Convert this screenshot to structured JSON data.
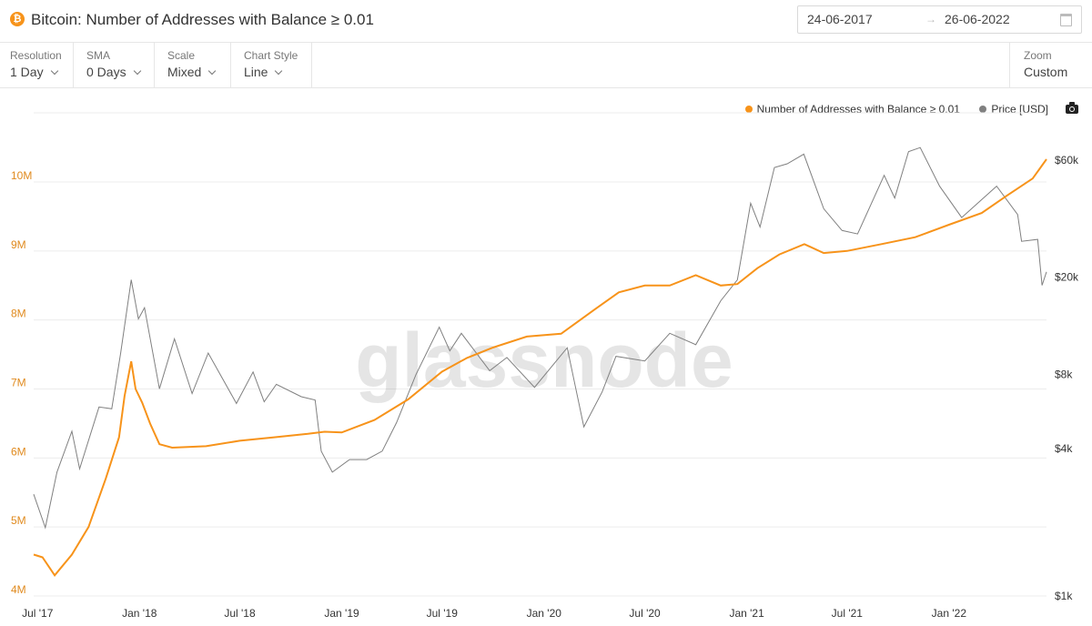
{
  "header": {
    "title": "Bitcoin: Number of Addresses with Balance ≥ 0.01",
    "coin_icon": "bitcoin-icon",
    "coin_glyph": "₿",
    "coin_color": "#f7931a",
    "date_from": "24-06-2017",
    "date_to": "26-06-2022",
    "calendar_icon": "calendar-icon"
  },
  "controls": [
    {
      "label": "Resolution",
      "value": "1 Day"
    },
    {
      "label": "SMA",
      "value": "0 Days"
    },
    {
      "label": "Scale",
      "value": "Mixed"
    },
    {
      "label": "Chart Style",
      "value": "Line"
    }
  ],
  "zoom": {
    "label": "Zoom",
    "value": "Custom"
  },
  "watermark": "glassnode",
  "camera_icon": "camera-icon",
  "chart_data": {
    "type": "line",
    "x_range": [
      "2017-06-24",
      "2022-06-26"
    ],
    "x_ticks": [
      "Jul '17",
      "Jan '18",
      "Jul '18",
      "Jan '19",
      "Jul '19",
      "Jan '20",
      "Jul '20",
      "Jan '21",
      "Jul '21",
      "Jan '22"
    ],
    "left_axis": {
      "ticks": [
        "4M",
        "5M",
        "6M",
        "7M",
        "8M",
        "9M",
        "10M"
      ],
      "range": [
        4000000,
        10000000
      ],
      "scale": "linear",
      "color": "#e08a1e"
    },
    "right_axis": {
      "ticks": [
        "$1k",
        "$4k",
        "$8k",
        "$20k",
        "$60k"
      ],
      "range_usd": [
        1000,
        60000
      ],
      "scale": "log"
    },
    "grid": true,
    "legend_position": "top-right",
    "series": [
      {
        "name": "Number of Addresses with Balance ≥ 0.01",
        "color": "#f7931a",
        "axis": "left",
        "points": [
          [
            "2017-06-24",
            4600000
          ],
          [
            "2017-07-10",
            4560000
          ],
          [
            "2017-08-01",
            4300000
          ],
          [
            "2017-09-01",
            4600000
          ],
          [
            "2017-10-01",
            5000000
          ],
          [
            "2017-11-01",
            5700000
          ],
          [
            "2017-11-25",
            6300000
          ],
          [
            "2017-12-05",
            6900000
          ],
          [
            "2017-12-17",
            7400000
          ],
          [
            "2017-12-25",
            7000000
          ],
          [
            "2018-01-06",
            6800000
          ],
          [
            "2018-01-20",
            6500000
          ],
          [
            "2018-02-06",
            6200000
          ],
          [
            "2018-03-01",
            6150000
          ],
          [
            "2018-05-01",
            6170000
          ],
          [
            "2018-07-01",
            6250000
          ],
          [
            "2018-09-01",
            6300000
          ],
          [
            "2018-11-01",
            6350000
          ],
          [
            "2018-12-01",
            6380000
          ],
          [
            "2019-01-01",
            6370000
          ],
          [
            "2019-03-01",
            6550000
          ],
          [
            "2019-05-01",
            6850000
          ],
          [
            "2019-07-01",
            7250000
          ],
          [
            "2019-08-15",
            7450000
          ],
          [
            "2019-10-01",
            7600000
          ],
          [
            "2019-12-01",
            7760000
          ],
          [
            "2020-02-01",
            7800000
          ],
          [
            "2020-04-01",
            8150000
          ],
          [
            "2020-05-15",
            8400000
          ],
          [
            "2020-07-01",
            8500000
          ],
          [
            "2020-08-15",
            8500000
          ],
          [
            "2020-10-01",
            8650000
          ],
          [
            "2020-11-15",
            8500000
          ],
          [
            "2020-12-15",
            8520000
          ],
          [
            "2021-01-20",
            8750000
          ],
          [
            "2021-03-01",
            8950000
          ],
          [
            "2021-04-15",
            9100000
          ],
          [
            "2021-05-20",
            8970000
          ],
          [
            "2021-07-01",
            9000000
          ],
          [
            "2021-09-01",
            9100000
          ],
          [
            "2021-11-01",
            9200000
          ],
          [
            "2022-01-01",
            9380000
          ],
          [
            "2022-03-01",
            9550000
          ],
          [
            "2022-04-15",
            9800000
          ],
          [
            "2022-06-01",
            10050000
          ],
          [
            "2022-06-26",
            10330000
          ]
        ]
      },
      {
        "name": "Price [USD]",
        "color": "#808080",
        "axis": "right",
        "points": [
          [
            "2017-06-24",
            2600
          ],
          [
            "2017-07-15",
            1900
          ],
          [
            "2017-08-05",
            3200
          ],
          [
            "2017-09-01",
            4700
          ],
          [
            "2017-09-15",
            3300
          ],
          [
            "2017-10-20",
            5900
          ],
          [
            "2017-11-12",
            5800
          ],
          [
            "2017-11-28",
            9800
          ],
          [
            "2017-12-17",
            19500
          ],
          [
            "2017-12-30",
            13500
          ],
          [
            "2018-01-10",
            15000
          ],
          [
            "2018-02-06",
            7000
          ],
          [
            "2018-03-05",
            11200
          ],
          [
            "2018-04-06",
            6700
          ],
          [
            "2018-05-05",
            9800
          ],
          [
            "2018-06-25",
            6100
          ],
          [
            "2018-07-25",
            8200
          ],
          [
            "2018-08-14",
            6200
          ],
          [
            "2018-09-05",
            7300
          ],
          [
            "2018-10-20",
            6500
          ],
          [
            "2018-11-14",
            6300
          ],
          [
            "2018-11-25",
            3900
          ],
          [
            "2018-12-15",
            3200
          ],
          [
            "2019-01-15",
            3600
          ],
          [
            "2019-02-15",
            3600
          ],
          [
            "2019-03-15",
            3900
          ],
          [
            "2019-04-10",
            5100
          ],
          [
            "2019-05-15",
            8000
          ],
          [
            "2019-06-26",
            12500
          ],
          [
            "2019-07-15",
            10000
          ],
          [
            "2019-08-05",
            11800
          ],
          [
            "2019-09-25",
            8300
          ],
          [
            "2019-10-26",
            9400
          ],
          [
            "2019-12-15",
            7100
          ],
          [
            "2020-02-12",
            10300
          ],
          [
            "2020-03-13",
            4900
          ],
          [
            "2020-04-15",
            6800
          ],
          [
            "2020-05-10",
            9500
          ],
          [
            "2020-07-01",
            9100
          ],
          [
            "2020-08-15",
            11800
          ],
          [
            "2020-10-01",
            10600
          ],
          [
            "2020-11-15",
            16000
          ],
          [
            "2020-12-15",
            19500
          ],
          [
            "2021-01-08",
            40000
          ],
          [
            "2021-01-25",
            32000
          ],
          [
            "2021-02-20",
            56000
          ],
          [
            "2021-03-15",
            58000
          ],
          [
            "2021-04-14",
            63500
          ],
          [
            "2021-05-20",
            38000
          ],
          [
            "2021-06-22",
            31000
          ],
          [
            "2021-07-20",
            30000
          ],
          [
            "2021-09-06",
            52000
          ],
          [
            "2021-09-25",
            42000
          ],
          [
            "2021-10-20",
            65000
          ],
          [
            "2021-11-10",
            67500
          ],
          [
            "2021-12-15",
            47000
          ],
          [
            "2022-01-24",
            35000
          ],
          [
            "2022-03-28",
            47000
          ],
          [
            "2022-05-05",
            36000
          ],
          [
            "2022-05-12",
            28000
          ],
          [
            "2022-06-10",
            28500
          ],
          [
            "2022-06-18",
            18500
          ],
          [
            "2022-06-26",
            21000
          ]
        ]
      }
    ]
  }
}
